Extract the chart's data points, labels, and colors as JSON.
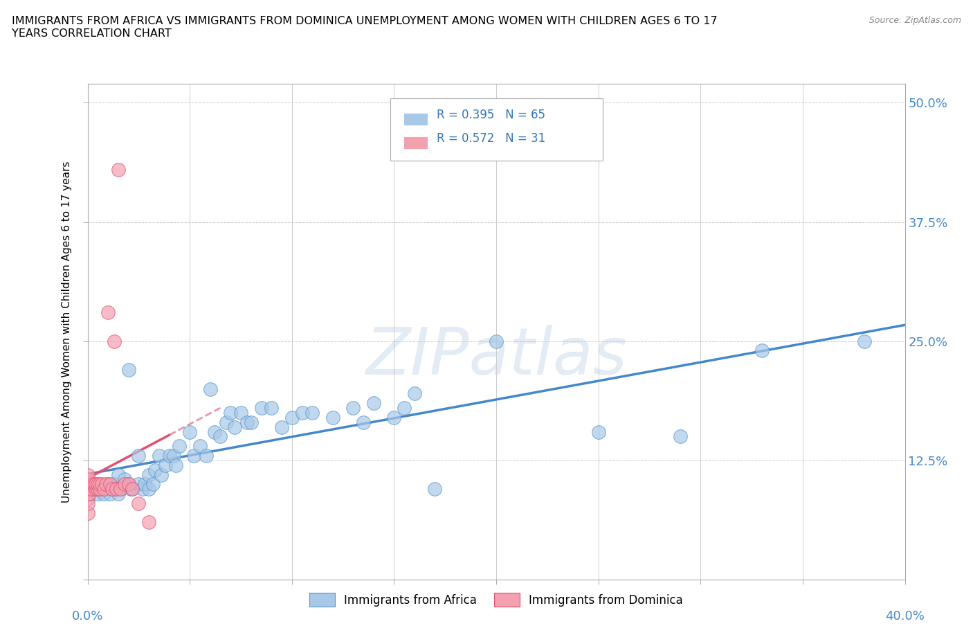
{
  "title": "IMMIGRANTS FROM AFRICA VS IMMIGRANTS FROM DOMINICA UNEMPLOYMENT AMONG WOMEN WITH CHILDREN AGES 6 TO 17\nYEARS CORRELATION CHART",
  "source": "Source: ZipAtlas.com",
  "ylabel": "Unemployment Among Women with Children Ages 6 to 17 years",
  "yticks": [
    0.0,
    0.125,
    0.25,
    0.375,
    0.5
  ],
  "ytick_labels": [
    "",
    "12.5%",
    "25.0%",
    "37.5%",
    "50.0%"
  ],
  "africa_R": 0.395,
  "africa_N": 65,
  "dominica_R": 0.572,
  "dominica_N": 31,
  "africa_color": "#a8c8e8",
  "dominica_color": "#f4a0b0",
  "africa_line_color": "#5599cc",
  "dominica_line_color": "#e05070",
  "africa_trend_color": "#4488cc",
  "dominica_trend_color": "#e05070",
  "watermark": "ZIPatlas",
  "africa_x": [
    0.0,
    0.005,
    0.005,
    0.007,
    0.008,
    0.01,
    0.01,
    0.011,
    0.012,
    0.013,
    0.015,
    0.015,
    0.016,
    0.018,
    0.02,
    0.02,
    0.021,
    0.022,
    0.025,
    0.025,
    0.027,
    0.028,
    0.03,
    0.03,
    0.032,
    0.033,
    0.035,
    0.036,
    0.038,
    0.04,
    0.042,
    0.043,
    0.045,
    0.05,
    0.052,
    0.055,
    0.058,
    0.06,
    0.062,
    0.065,
    0.068,
    0.07,
    0.072,
    0.075,
    0.078,
    0.08,
    0.085,
    0.09,
    0.095,
    0.1,
    0.105,
    0.11,
    0.12,
    0.13,
    0.135,
    0.14,
    0.15,
    0.155,
    0.16,
    0.17,
    0.2,
    0.25,
    0.29,
    0.33,
    0.38
  ],
  "africa_y": [
    0.085,
    0.09,
    0.095,
    0.095,
    0.09,
    0.1,
    0.095,
    0.09,
    0.095,
    0.1,
    0.11,
    0.09,
    0.095,
    0.105,
    0.22,
    0.1,
    0.095,
    0.095,
    0.13,
    0.1,
    0.095,
    0.1,
    0.11,
    0.095,
    0.1,
    0.115,
    0.13,
    0.11,
    0.12,
    0.13,
    0.13,
    0.12,
    0.14,
    0.155,
    0.13,
    0.14,
    0.13,
    0.2,
    0.155,
    0.15,
    0.165,
    0.175,
    0.16,
    0.175,
    0.165,
    0.165,
    0.18,
    0.18,
    0.16,
    0.17,
    0.175,
    0.175,
    0.17,
    0.18,
    0.165,
    0.185,
    0.17,
    0.18,
    0.195,
    0.095,
    0.25,
    0.155,
    0.15,
    0.24,
    0.25
  ],
  "dominica_x": [
    0.0,
    0.0,
    0.0,
    0.0,
    0.0,
    0.0,
    0.0,
    0.001,
    0.002,
    0.003,
    0.004,
    0.004,
    0.005,
    0.005,
    0.006,
    0.006,
    0.007,
    0.008,
    0.009,
    0.01,
    0.011,
    0.012,
    0.013,
    0.014,
    0.015,
    0.016,
    0.018,
    0.02,
    0.022,
    0.025,
    0.03
  ],
  "dominica_y": [
    0.07,
    0.08,
    0.09,
    0.095,
    0.1,
    0.105,
    0.11,
    0.09,
    0.095,
    0.1,
    0.095,
    0.1,
    0.095,
    0.1,
    0.095,
    0.1,
    0.1,
    0.095,
    0.1,
    0.28,
    0.1,
    0.095,
    0.25,
    0.095,
    0.43,
    0.095,
    0.1,
    0.1,
    0.095,
    0.08,
    0.06
  ]
}
